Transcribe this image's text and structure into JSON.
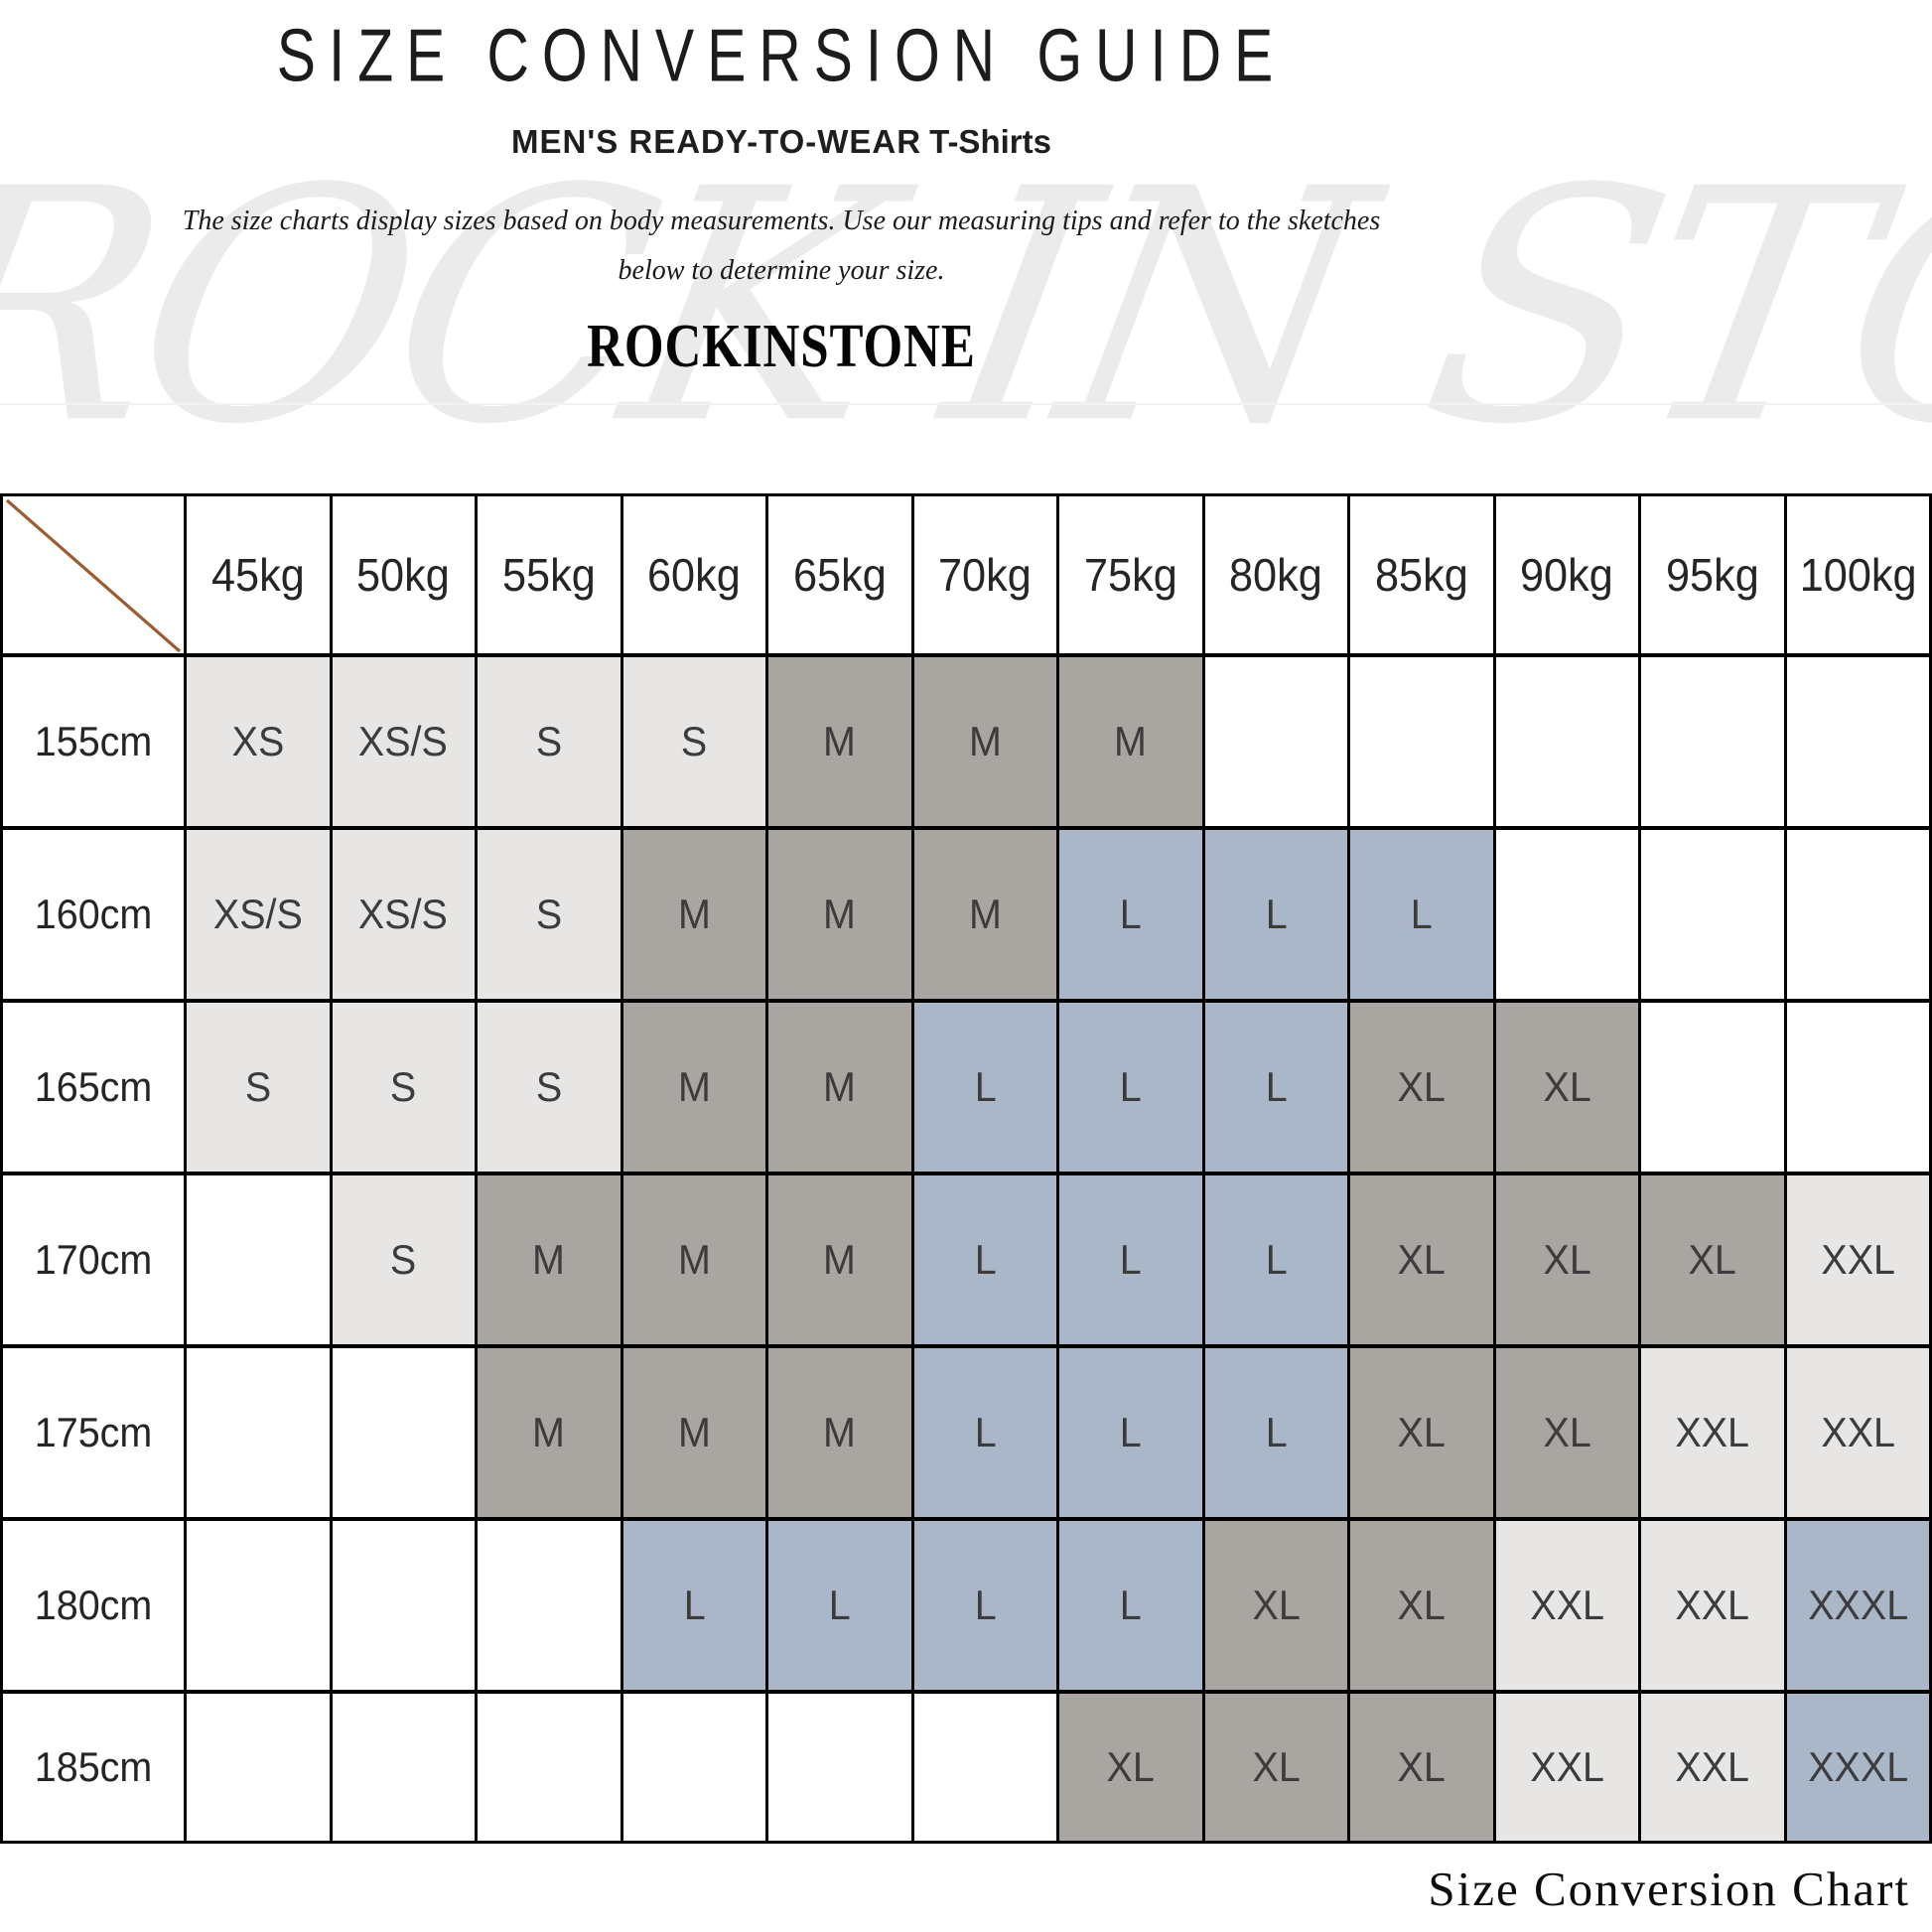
{
  "header": {
    "title": "SIZE CONVERSION GUIDE",
    "subtitle_prefix": "MEN'S READY-TO-WEAR",
    "subtitle_product": "T-Shirts",
    "description_line1": "The size charts display sizes based on body measurements.  Use our measuring tips and refer to the sketches",
    "description_line2": "below to determine your size.",
    "brand": "ROCKINSTONE",
    "watermark": "ROCK IN STONE"
  },
  "footer": {
    "caption": "Size Conversion Chart"
  },
  "colors": {
    "cell_light": "#e7e6e4",
    "cell_taupe": "#a9a5a1",
    "cell_blue": "#aab7c9",
    "cell_empty": "#ffffff",
    "diagonal_line": "#9d5b31",
    "watermark_gray": "#ebebeb",
    "grid_border": "#000000",
    "size_text": "#3c3c3c"
  },
  "chart_data": {
    "type": "table",
    "title": "SIZE CONVERSION GUIDE",
    "columns": [
      "45kg",
      "50kg",
      "55kg",
      "60kg",
      "65kg",
      "70kg",
      "75kg",
      "80kg",
      "85kg",
      "90kg",
      "95kg",
      "100kg"
    ],
    "rows": [
      "155cm",
      "160cm",
      "165cm",
      "170cm",
      "175cm",
      "180cm",
      "185cm"
    ],
    "cells": [
      [
        {
          "v": "XS",
          "bg": "light"
        },
        {
          "v": "XS/S",
          "bg": "light"
        },
        {
          "v": "S",
          "bg": "light"
        },
        {
          "v": "S",
          "bg": "light"
        },
        {
          "v": "M",
          "bg": "taupe"
        },
        {
          "v": "M",
          "bg": "taupe"
        },
        {
          "v": "M",
          "bg": "taupe"
        },
        {
          "v": "",
          "bg": "empty"
        },
        {
          "v": "",
          "bg": "empty"
        },
        {
          "v": "",
          "bg": "empty"
        },
        {
          "v": "",
          "bg": "empty"
        },
        {
          "v": "",
          "bg": "empty"
        }
      ],
      [
        {
          "v": "XS/S",
          "bg": "light"
        },
        {
          "v": "XS/S",
          "bg": "light"
        },
        {
          "v": "S",
          "bg": "light"
        },
        {
          "v": "M",
          "bg": "taupe"
        },
        {
          "v": "M",
          "bg": "taupe"
        },
        {
          "v": "M",
          "bg": "taupe"
        },
        {
          "v": "L",
          "bg": "blue"
        },
        {
          "v": "L",
          "bg": "blue"
        },
        {
          "v": "L",
          "bg": "blue"
        },
        {
          "v": "",
          "bg": "empty"
        },
        {
          "v": "",
          "bg": "empty"
        },
        {
          "v": "",
          "bg": "empty"
        }
      ],
      [
        {
          "v": "S",
          "bg": "light"
        },
        {
          "v": "S",
          "bg": "light"
        },
        {
          "v": "S",
          "bg": "light"
        },
        {
          "v": "M",
          "bg": "taupe"
        },
        {
          "v": "M",
          "bg": "taupe"
        },
        {
          "v": "L",
          "bg": "blue"
        },
        {
          "v": "L",
          "bg": "blue"
        },
        {
          "v": "L",
          "bg": "blue"
        },
        {
          "v": "XL",
          "bg": "taupe"
        },
        {
          "v": "XL",
          "bg": "taupe"
        },
        {
          "v": "",
          "bg": "empty"
        },
        {
          "v": "",
          "bg": "empty"
        }
      ],
      [
        {
          "v": "",
          "bg": "empty"
        },
        {
          "v": "S",
          "bg": "light"
        },
        {
          "v": "M",
          "bg": "taupe"
        },
        {
          "v": "M",
          "bg": "taupe"
        },
        {
          "v": "M",
          "bg": "taupe"
        },
        {
          "v": "L",
          "bg": "blue"
        },
        {
          "v": "L",
          "bg": "blue"
        },
        {
          "v": "L",
          "bg": "blue"
        },
        {
          "v": "XL",
          "bg": "taupe"
        },
        {
          "v": "XL",
          "bg": "taupe"
        },
        {
          "v": "XL",
          "bg": "taupe"
        },
        {
          "v": "XXL",
          "bg": "light"
        }
      ],
      [
        {
          "v": "",
          "bg": "empty"
        },
        {
          "v": "",
          "bg": "empty"
        },
        {
          "v": "M",
          "bg": "taupe"
        },
        {
          "v": "M",
          "bg": "taupe"
        },
        {
          "v": "M",
          "bg": "taupe"
        },
        {
          "v": "L",
          "bg": "blue"
        },
        {
          "v": "L",
          "bg": "blue"
        },
        {
          "v": "L",
          "bg": "blue"
        },
        {
          "v": "XL",
          "bg": "taupe"
        },
        {
          "v": "XL",
          "bg": "taupe"
        },
        {
          "v": "XXL",
          "bg": "light"
        },
        {
          "v": "XXL",
          "bg": "light"
        }
      ],
      [
        {
          "v": "",
          "bg": "empty"
        },
        {
          "v": "",
          "bg": "empty"
        },
        {
          "v": "",
          "bg": "empty"
        },
        {
          "v": "L",
          "bg": "blue"
        },
        {
          "v": "L",
          "bg": "blue"
        },
        {
          "v": "L",
          "bg": "blue"
        },
        {
          "v": "L",
          "bg": "blue"
        },
        {
          "v": "XL",
          "bg": "taupe"
        },
        {
          "v": "XL",
          "bg": "taupe"
        },
        {
          "v": "XXL",
          "bg": "light"
        },
        {
          "v": "XXL",
          "bg": "light"
        },
        {
          "v": "XXXL",
          "bg": "blue"
        }
      ],
      [
        {
          "v": "",
          "bg": "empty"
        },
        {
          "v": "",
          "bg": "empty"
        },
        {
          "v": "",
          "bg": "empty"
        },
        {
          "v": "",
          "bg": "empty"
        },
        {
          "v": "",
          "bg": "empty"
        },
        {
          "v": "",
          "bg": "empty"
        },
        {
          "v": "XL",
          "bg": "taupe"
        },
        {
          "v": "XL",
          "bg": "taupe"
        },
        {
          "v": "XL",
          "bg": "taupe"
        },
        {
          "v": "XXL",
          "bg": "light"
        },
        {
          "v": "XXL",
          "bg": "light"
        },
        {
          "v": "XXXL",
          "bg": "blue"
        }
      ]
    ]
  }
}
